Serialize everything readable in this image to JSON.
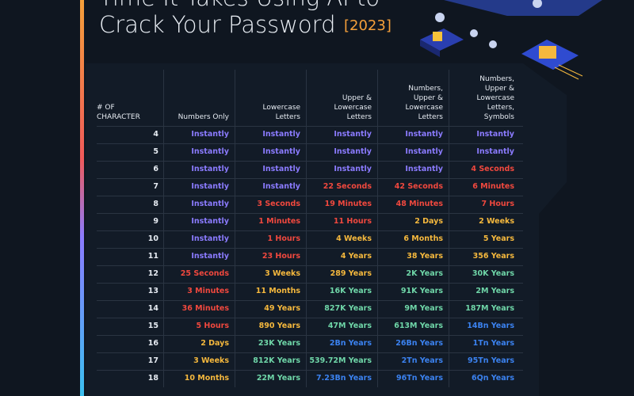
{
  "header": {
    "title_line1": "Time It Takes Using AI to",
    "title_line2": "Crack Your Password",
    "year": "[2023]"
  },
  "table": {
    "columns": [
      "# OF CHARACTER",
      "Numbers Only",
      "Lowercase Letters",
      "Upper & Lowercase Letters",
      "Numbers, Upper & Lowercase Letters",
      "Numbers, Upper & Lowercase Letters, Symbols"
    ],
    "rows": [
      {
        "label": "4",
        "cells": [
          "Instantly",
          "Instantly",
          "Instantly",
          "Instantly",
          "Instantly"
        ],
        "colors": [
          "#8b7bff",
          "#8b7bff",
          "#8b7bff",
          "#8b7bff",
          "#8b7bff"
        ]
      },
      {
        "label": "5",
        "cells": [
          "Instantly",
          "Instantly",
          "Instantly",
          "Instantly",
          "Instantly"
        ],
        "colors": [
          "#8b7bff",
          "#8b7bff",
          "#8b7bff",
          "#8b7bff",
          "#8b7bff"
        ]
      },
      {
        "label": "6",
        "cells": [
          "Instantly",
          "Instantly",
          "Instantly",
          "Instantly",
          "4 Seconds"
        ],
        "colors": [
          "#8b7bff",
          "#8b7bff",
          "#8b7bff",
          "#8b7bff",
          "#f0483e"
        ]
      },
      {
        "label": "7",
        "cells": [
          "Instantly",
          "Instantly",
          "22 Seconds",
          "42 Seconds",
          "6 Minutes"
        ],
        "colors": [
          "#8b7bff",
          "#8b7bff",
          "#f0483e",
          "#f0483e",
          "#f0483e"
        ]
      },
      {
        "label": "8",
        "cells": [
          "Instantly",
          "3 Seconds",
          "19 Minutes",
          "48 Minutes",
          "7 Hours"
        ],
        "colors": [
          "#8b7bff",
          "#f0483e",
          "#f0483e",
          "#f0483e",
          "#f0483e"
        ]
      },
      {
        "label": "9",
        "cells": [
          "Instantly",
          "1 Minutes",
          "11 Hours",
          "2 Days",
          "2 Weeks"
        ],
        "colors": [
          "#8b7bff",
          "#f0483e",
          "#f0483e",
          "#f5b83d",
          "#f5b83d"
        ]
      },
      {
        "label": "10",
        "cells": [
          "Instantly",
          "1 Hours",
          "4 Weeks",
          "6 Months",
          "5 Years"
        ],
        "colors": [
          "#8b7bff",
          "#f0483e",
          "#f5b83d",
          "#f5b83d",
          "#f5b83d"
        ]
      },
      {
        "label": "11",
        "cells": [
          "Instantly",
          "23 Hours",
          "4 Years",
          "38 Years",
          "356 Years"
        ],
        "colors": [
          "#8b7bff",
          "#f0483e",
          "#f5b83d",
          "#f5b83d",
          "#f5b83d"
        ]
      },
      {
        "label": "12",
        "cells": [
          "25 Seconds",
          "3 Weeks",
          "289 Years",
          "2K Years",
          "30K Years"
        ],
        "colors": [
          "#f0483e",
          "#f5b83d",
          "#f5b83d",
          "#6fd6a8",
          "#6fd6a8"
        ]
      },
      {
        "label": "13",
        "cells": [
          "3 Minutes",
          "11 Months",
          "16K Years",
          "91K Years",
          "2M Years"
        ],
        "colors": [
          "#f0483e",
          "#f5b83d",
          "#6fd6a8",
          "#6fd6a8",
          "#6fd6a8"
        ]
      },
      {
        "label": "14",
        "cells": [
          "36 Minutes",
          "49 Years",
          "827K Years",
          "9M Years",
          "187M Years"
        ],
        "colors": [
          "#f0483e",
          "#f5b83d",
          "#6fd6a8",
          "#6fd6a8",
          "#6fd6a8"
        ]
      },
      {
        "label": "15",
        "cells": [
          "5 Hours",
          "890 Years",
          "47M Years",
          "613M Years",
          "14Bn Years"
        ],
        "colors": [
          "#f0483e",
          "#f5b83d",
          "#6fd6a8",
          "#6fd6a8",
          "#3b82f0"
        ]
      },
      {
        "label": "16",
        "cells": [
          "2 Days",
          "23K Years",
          "2Bn Years",
          "26Bn Years",
          "1Tn Years"
        ],
        "colors": [
          "#f5b83d",
          "#6fd6a8",
          "#3b82f0",
          "#3b82f0",
          "#3b82f0"
        ]
      },
      {
        "label": "17",
        "cells": [
          "3 Weeks",
          "812K Years",
          "539.72M Years",
          "2Tn Years",
          "95Tn Years"
        ],
        "colors": [
          "#f5b83d",
          "#6fd6a8",
          "#6fd6a8",
          "#3b82f0",
          "#3b82f0"
        ]
      },
      {
        "label": "18",
        "cells": [
          "10 Months",
          "22M Years",
          "7.23Bn Years",
          "96Tn Years",
          "6Qn Years"
        ],
        "colors": [
          "#f5b83d",
          "#6fd6a8",
          "#3b82f0",
          "#3b82f0",
          "#3b82f0"
        ]
      }
    ]
  }
}
